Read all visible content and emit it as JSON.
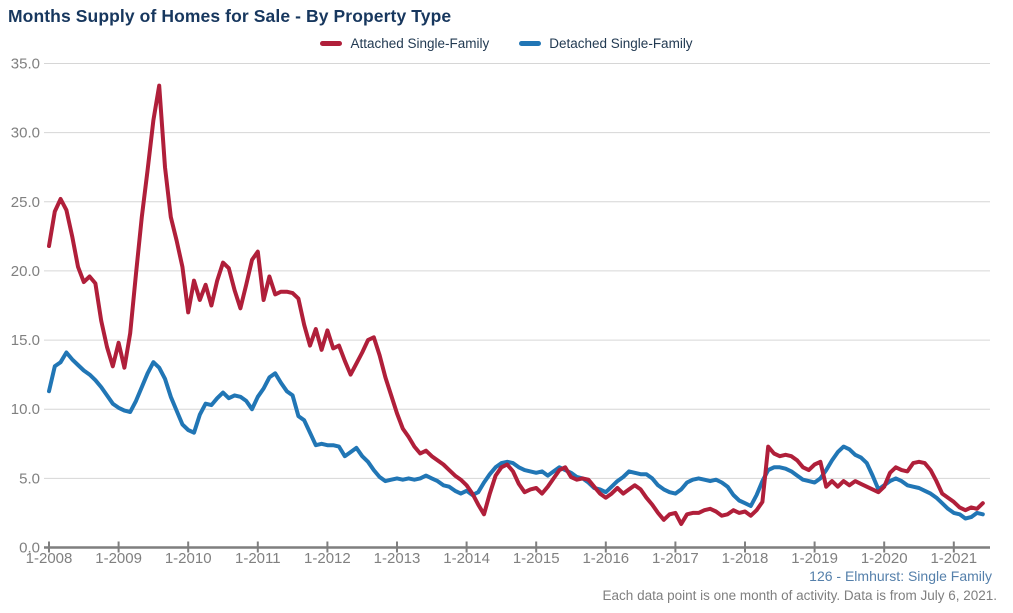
{
  "footnotes": {
    "source": "126 - Elmhurst: Single Family",
    "note": "Each data point is one month of activity. Data is from July 6, 2021."
  },
  "colors": {
    "title_text": "#17375e",
    "legend_text": "#223a52",
    "axis_label": "#808080",
    "gridline": "#d6d6d6",
    "axis_line": "#7f7f7f",
    "footnote_source": "#5580ab",
    "footnote_note": "#7f7f7f",
    "background": "#ffffff"
  },
  "chart_data": {
    "type": "line",
    "title": "Months Supply of Homes for Sale - By Property Type",
    "xlabel": "",
    "ylabel": "",
    "x_start_month": "1-2008",
    "x_end_month": "6-2021",
    "x_tick_labels": [
      "1-2008",
      "1-2009",
      "1-2010",
      "1-2011",
      "1-2012",
      "1-2013",
      "1-2014",
      "1-2015",
      "1-2016",
      "1-2017",
      "1-2018",
      "1-2019",
      "1-2020",
      "1-2021"
    ],
    "y_tick_labels": [
      "0.0",
      "5.0",
      "10.0",
      "15.0",
      "20.0",
      "25.0",
      "30.0",
      "35.0"
    ],
    "ylim": [
      0,
      35
    ],
    "y_tick_step": 5,
    "grid": "horizontal",
    "legend_position": "top-center",
    "series": [
      {
        "name": "Attached Single-Family",
        "color": "#b01f3a",
        "values": [
          21.8,
          24.3,
          25.2,
          24.4,
          22.5,
          20.3,
          19.2,
          19.6,
          19.1,
          16.4,
          14.5,
          13.1,
          14.8,
          13.0,
          15.5,
          19.8,
          23.9,
          27.3,
          30.9,
          33.4,
          27.5,
          23.9,
          22.2,
          20.3,
          17.0,
          19.3,
          17.9,
          19.0,
          17.5,
          19.3,
          20.6,
          20.2,
          18.6,
          17.3,
          19.0,
          20.8,
          21.4,
          17.9,
          19.6,
          18.3,
          18.5,
          18.5,
          18.4,
          18.0,
          16.1,
          14.6,
          15.8,
          14.3,
          15.7,
          14.4,
          14.6,
          13.5,
          12.5,
          13.3,
          14.1,
          15.0,
          15.2,
          13.9,
          12.3,
          11.0,
          9.7,
          8.6,
          8.0,
          7.3,
          6.8,
          7.0,
          6.6,
          6.3,
          6.0,
          5.6,
          5.2,
          4.9,
          4.5,
          3.9,
          3.1,
          2.4,
          3.9,
          5.2,
          5.8,
          6.0,
          5.5,
          4.6,
          4.0,
          4.2,
          4.3,
          3.9,
          4.4,
          5.0,
          5.6,
          5.8,
          5.1,
          4.9,
          5.0,
          4.9,
          4.4,
          3.9,
          3.6,
          3.9,
          4.3,
          3.9,
          4.2,
          4.5,
          4.2,
          3.6,
          3.1,
          2.5,
          2.0,
          2.4,
          2.5,
          1.7,
          2.4,
          2.5,
          2.5,
          2.7,
          2.8,
          2.6,
          2.3,
          2.4,
          2.7,
          2.5,
          2.6,
          2.3,
          2.7,
          3.3,
          7.3,
          6.8,
          6.6,
          6.7,
          6.6,
          6.3,
          5.8,
          5.6,
          6.0,
          6.2,
          4.4,
          4.8,
          4.4,
          4.8,
          4.5,
          4.8,
          4.6,
          4.4,
          4.2,
          4.0,
          4.4,
          5.4,
          5.8,
          5.6,
          5.5,
          6.1,
          6.2,
          6.1,
          5.6,
          4.8,
          3.9,
          3.6,
          3.3,
          2.9,
          2.7,
          2.9,
          2.8,
          3.2
        ]
      },
      {
        "name": "Detached Single-Family",
        "color": "#2176b5",
        "values": [
          11.3,
          13.1,
          13.4,
          14.1,
          13.6,
          13.2,
          12.8,
          12.5,
          12.1,
          11.6,
          11.0,
          10.4,
          10.1,
          9.9,
          9.8,
          10.6,
          11.6,
          12.6,
          13.4,
          13.0,
          12.2,
          10.9,
          9.9,
          8.9,
          8.5,
          8.3,
          9.6,
          10.4,
          10.3,
          10.8,
          11.2,
          10.8,
          11.0,
          10.9,
          10.6,
          10.0,
          10.9,
          11.5,
          12.3,
          12.6,
          11.9,
          11.3,
          11.0,
          9.5,
          9.2,
          8.3,
          7.4,
          7.5,
          7.4,
          7.4,
          7.3,
          6.6,
          6.9,
          7.2,
          6.6,
          6.2,
          5.6,
          5.1,
          4.8,
          4.9,
          5.0,
          4.9,
          5.0,
          4.9,
          5.0,
          5.2,
          5.0,
          4.8,
          4.5,
          4.4,
          4.1,
          3.9,
          4.1,
          3.8,
          4.0,
          4.7,
          5.3,
          5.8,
          6.1,
          6.2,
          6.1,
          5.8,
          5.6,
          5.5,
          5.4,
          5.5,
          5.2,
          5.5,
          5.8,
          5.6,
          5.4,
          5.1,
          5.0,
          4.7,
          4.3,
          4.2,
          4.0,
          4.4,
          4.8,
          5.1,
          5.5,
          5.4,
          5.3,
          5.3,
          5.0,
          4.5,
          4.2,
          4.0,
          3.9,
          4.2,
          4.7,
          4.9,
          5.0,
          4.9,
          4.8,
          4.9,
          4.7,
          4.4,
          3.8,
          3.4,
          3.2,
          3.0,
          3.8,
          4.8,
          5.6,
          5.8,
          5.8,
          5.7,
          5.5,
          5.2,
          4.9,
          4.8,
          4.7,
          5.0,
          5.6,
          6.3,
          6.9,
          7.3,
          7.1,
          6.7,
          6.5,
          6.1,
          5.2,
          4.2,
          4.5,
          4.8,
          5.0,
          4.8,
          4.5,
          4.4,
          4.3,
          4.1,
          3.9,
          3.6,
          3.2,
          2.8,
          2.5,
          2.4,
          2.1,
          2.2,
          2.5,
          2.4
        ]
      }
    ]
  }
}
